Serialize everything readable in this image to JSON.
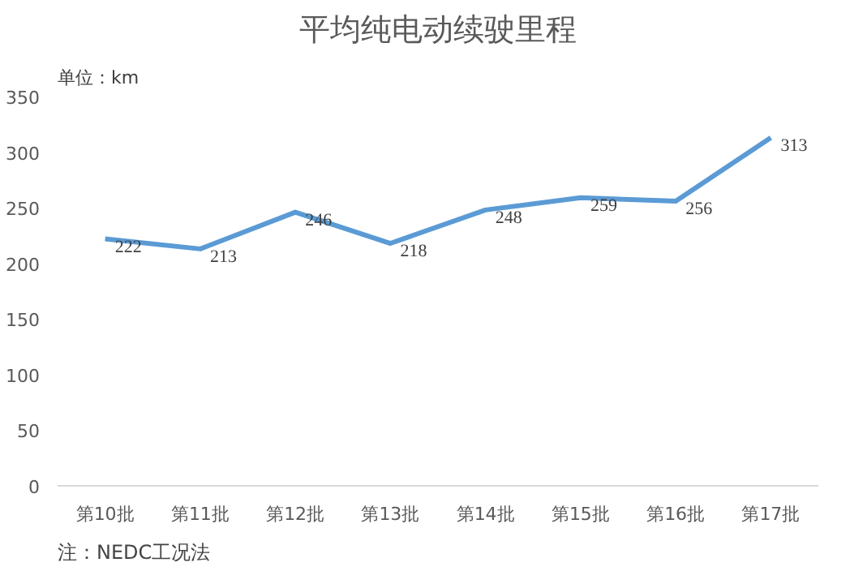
{
  "chart_data": {
    "type": "line",
    "title": "平均纯电动续驶里程",
    "ylabel": "单位：km",
    "categories": [
      "第10批",
      "第11批",
      "第12批",
      "第13批",
      "第14批",
      "第15批",
      "第16批",
      "第17批"
    ],
    "series": [
      {
        "color": "#5b9bd5",
        "values": [
          222,
          213,
          246,
          218,
          248,
          259,
          256,
          313
        ]
      }
    ],
    "ylim": [
      0,
      350
    ],
    "yticks": [
      0,
      50,
      100,
      150,
      200,
      250,
      300,
      350
    ],
    "data_labels": true,
    "marker": "none",
    "line_style": "solid",
    "annotations": [
      "注：NEDC工况法"
    ]
  }
}
